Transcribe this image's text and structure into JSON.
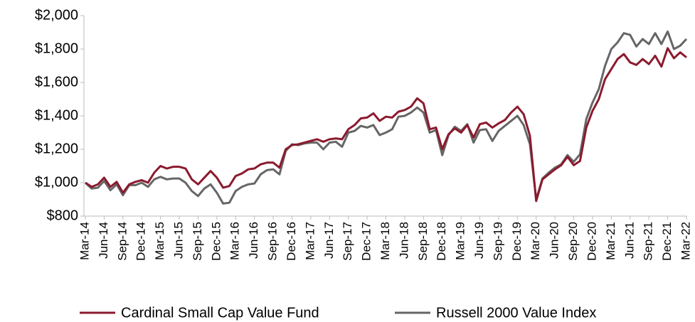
{
  "chart_data": {
    "type": "line",
    "categories": [
      "Mar-14",
      null,
      null,
      "Jun-14",
      null,
      null,
      "Sep-14",
      null,
      null,
      "Dec-14",
      null,
      null,
      "Mar-15",
      null,
      null,
      "Jun-15",
      null,
      null,
      "Sep-15",
      null,
      null,
      "Dec-15",
      null,
      null,
      "Mar-16",
      null,
      null,
      "Jun-16",
      null,
      null,
      "Sep-16",
      null,
      null,
      "Dec-16",
      null,
      null,
      "Mar-17",
      null,
      null,
      "Jun-17",
      null,
      null,
      "Sep-17",
      null,
      null,
      "Dec-17",
      null,
      null,
      "Mar-18",
      null,
      null,
      "Jun-18",
      null,
      null,
      "Sep-18",
      null,
      null,
      "Dec-18",
      null,
      null,
      "Mar-19",
      null,
      null,
      "Jun-19",
      null,
      null,
      "Sep-19",
      null,
      null,
      "Dec-19",
      null,
      null,
      "Mar-20",
      null,
      null,
      "Jun-20",
      null,
      null,
      "Sep-20",
      null,
      null,
      "Dec-20",
      null,
      null,
      "Mar-21",
      null,
      null,
      "Jun-21",
      null,
      null,
      "Sep-21",
      null,
      null,
      "Dec-21",
      null,
      null,
      "Mar-22"
    ],
    "series": [
      {
        "name": "Cardinal Small Cap Value Fund",
        "color": "#8b1a2e",
        "values": [
          1000,
          975,
          990,
          1030,
          975,
          1005,
          940,
          990,
          1005,
          1015,
          1000,
          1060,
          1100,
          1085,
          1095,
          1095,
          1085,
          1020,
          990,
          1030,
          1070,
          1030,
          970,
          980,
          1040,
          1055,
          1080,
          1085,
          1110,
          1120,
          1120,
          1090,
          1200,
          1225,
          1230,
          1240,
          1250,
          1260,
          1245,
          1260,
          1265,
          1260,
          1320,
          1345,
          1385,
          1390,
          1415,
          1370,
          1395,
          1390,
          1425,
          1435,
          1455,
          1505,
          1475,
          1320,
          1330,
          1200,
          1290,
          1325,
          1300,
          1345,
          1270,
          1350,
          1360,
          1330,
          1355,
          1375,
          1420,
          1455,
          1410,
          1280,
          890,
          1020,
          1050,
          1080,
          1105,
          1155,
          1105,
          1130,
          1330,
          1430,
          1500,
          1620,
          1680,
          1740,
          1770,
          1720,
          1705,
          1740,
          1710,
          1760,
          1695,
          1805,
          1745,
          1780,
          1750
        ]
      },
      {
        "name": "Russell 2000 Value Index",
        "color": "#666666",
        "values": [
          1000,
          965,
          970,
          1010,
          955,
          990,
          925,
          985,
          985,
          1000,
          975,
          1020,
          1035,
          1020,
          1025,
          1025,
          1000,
          950,
          920,
          965,
          990,
          940,
          875,
          880,
          950,
          975,
          990,
          995,
          1050,
          1075,
          1080,
          1050,
          1190,
          1230,
          1225,
          1235,
          1240,
          1240,
          1200,
          1240,
          1245,
          1215,
          1300,
          1310,
          1340,
          1330,
          1345,
          1285,
          1300,
          1320,
          1395,
          1400,
          1420,
          1450,
          1420,
          1300,
          1315,
          1165,
          1285,
          1335,
          1310,
          1350,
          1240,
          1315,
          1320,
          1250,
          1310,
          1340,
          1370,
          1400,
          1345,
          1230,
          900,
          1025,
          1060,
          1090,
          1110,
          1165,
          1125,
          1170,
          1380,
          1480,
          1560,
          1700,
          1800,
          1840,
          1895,
          1885,
          1815,
          1860,
          1830,
          1895,
          1830,
          1905,
          1800,
          1820,
          1860
        ]
      }
    ],
    "ylim": [
      800,
      2000
    ],
    "yticks": [
      {
        "value": 800,
        "label": "$800"
      },
      {
        "value": 1000,
        "label": "$1,000"
      },
      {
        "value": 1200,
        "label": "$1,200"
      },
      {
        "value": 1400,
        "label": "$1,400"
      },
      {
        "value": 1600,
        "label": "$1,600"
      },
      {
        "value": 1800,
        "label": "$1,800"
      },
      {
        "value": 2000,
        "label": "$2,000"
      }
    ],
    "legend": "bottom"
  }
}
